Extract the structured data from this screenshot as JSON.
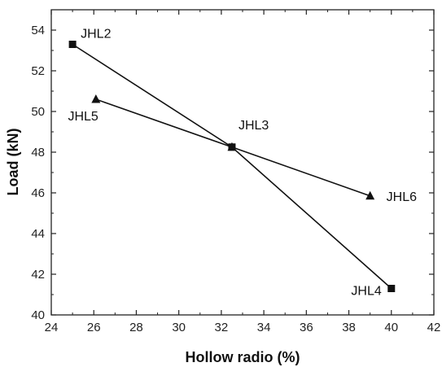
{
  "chart_data": {
    "type": "line",
    "xlabel": "Hollow radio (%)",
    "ylabel": "Load (kN)",
    "xlim": [
      24,
      42
    ],
    "ylim": [
      40,
      55
    ],
    "xticks": [
      24,
      26,
      28,
      30,
      32,
      34,
      36,
      38,
      40,
      42
    ],
    "yticks": [
      40,
      42,
      44,
      46,
      48,
      50,
      52,
      54
    ],
    "grid": false,
    "series": [
      {
        "marker": "square",
        "points": [
          {
            "x": 25.0,
            "y": 53.3,
            "label": "JHL2"
          },
          {
            "x": 32.5,
            "y": 48.25,
            "label": "JHL3"
          },
          {
            "x": 40.0,
            "y": 41.3,
            "label": "JHL4"
          }
        ]
      },
      {
        "marker": "triangle",
        "points": [
          {
            "x": 26.1,
            "y": 50.6,
            "label": "JHL5"
          },
          {
            "x": 32.5,
            "y": 48.25,
            "label": ""
          },
          {
            "x": 39.0,
            "y": 45.85,
            "label": "JHL6"
          }
        ]
      }
    ]
  }
}
